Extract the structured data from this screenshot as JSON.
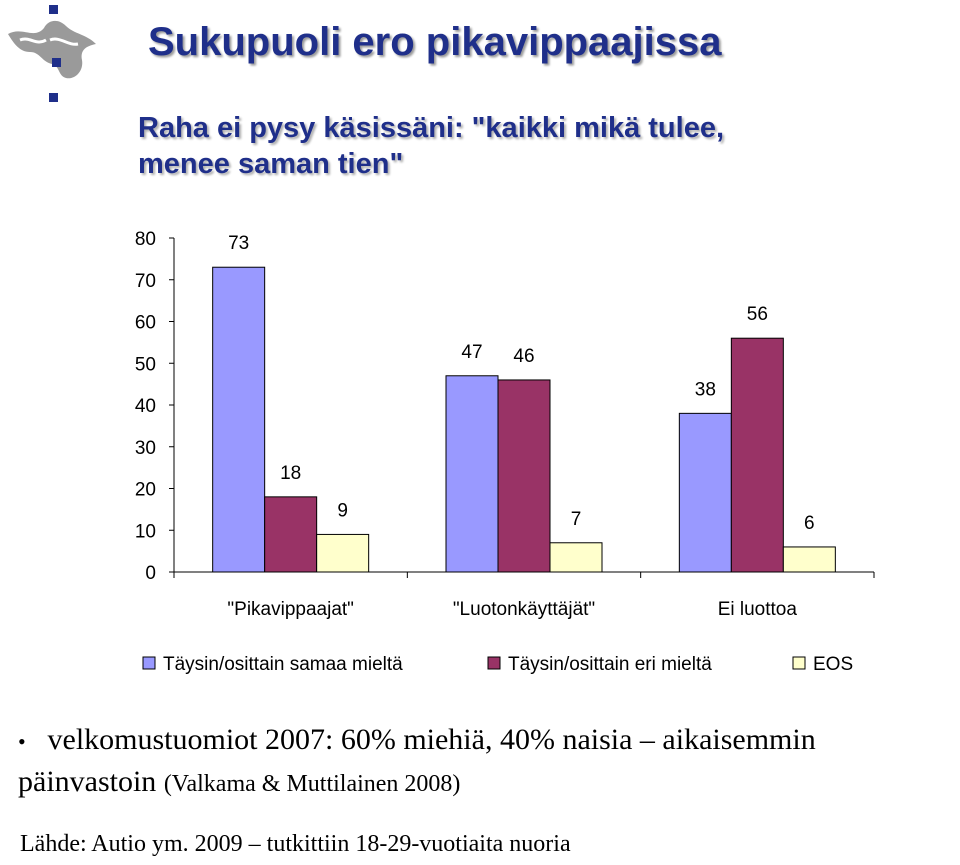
{
  "header": {
    "title": "Sukupuoli ero pikavippaajissa",
    "subtitle_line1": "Raha ei pysy käsissäni: \"kaikki mikä tulee,",
    "subtitle_line2": "menee saman tien\""
  },
  "chart_data": {
    "type": "bar",
    "categories": [
      "\"Pikavippaajat\"",
      "\"Luotonkäyttäjät\"",
      "Ei luottoa"
    ],
    "series": [
      {
        "name": "Täysin/osittain samaa mieltä",
        "values": [
          73,
          47,
          38
        ],
        "color": "#9999ff"
      },
      {
        "name": "Täysin/osittain eri mieltä",
        "values": [
          18,
          46,
          56
        ],
        "color": "#993366"
      },
      {
        "name": "EOS",
        "values": [
          9,
          7,
          6
        ],
        "color": "#ffffcc"
      }
    ],
    "yticks": [
      0,
      10,
      20,
      30,
      40,
      50,
      60,
      70,
      80
    ],
    "ylim": [
      0,
      80
    ],
    "legend_position": "bottom",
    "grid": false
  },
  "notes": {
    "bullet_text": "velkomustuomiot 2007: 60% miehiä, 40% naisia – aikaisemmin päinvastoin",
    "bullet_citation": "(Valkama & Muttilainen 2008)",
    "source": "Lähde: Autio ym. 2009 – tutkittiin 18-29-vuotiaita nuoria"
  }
}
